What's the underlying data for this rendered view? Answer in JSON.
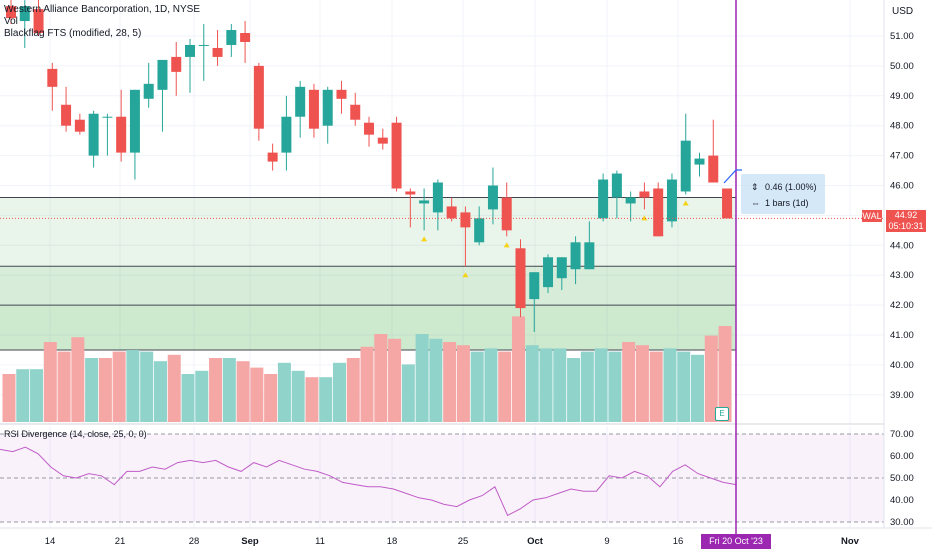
{
  "header": {
    "title": "Western Alliance Bancorporation, 1D, NYSE",
    "vol_label": "Vol",
    "indicator": "Blackflag FTS (modified, 28, 5)"
  },
  "currency": "USD",
  "measure": {
    "change": "0.46 (1.00%)",
    "bars": "1 bars (1d)"
  },
  "price_tag": {
    "ticker": "WAL",
    "price": "44.92",
    "countdown": "05:10:31"
  },
  "rsi_title": "RSI Divergence (14, close, 25, 0, 0)",
  "crosshair_date": "Fri 20 Oct '23",
  "earnings_badge": "E",
  "colors": {
    "up": "#26a69a",
    "down": "#ef5350",
    "vol_up": "#8fd3cb",
    "vol_down": "#f5a7a5",
    "zone_fill": "#4caf50",
    "rsi_line": "#c05cc8",
    "crosshair": "#9c27b0",
    "signal": "#f5d31b"
  },
  "chart_data": [
    {
      "type": "candlestick",
      "title": "Western Alliance Bancorporation, 1D, NYSE",
      "x_ticks": [
        "14",
        "21",
        "28",
        "Sep",
        "11",
        "18",
        "25",
        "Oct",
        "9",
        "16",
        "Fri 20 Oct '23",
        "Nov"
      ],
      "ylim": [
        38.3,
        51.8
      ],
      "y_ticks": [
        39.0,
        40.0,
        41.0,
        42.0,
        43.0,
        44.0,
        45.0,
        46.0,
        47.0,
        48.0,
        49.0,
        50.0,
        51.0
      ],
      "zones": [
        {
          "top": 45.6,
          "bottom": 43.3
        },
        {
          "top": 43.3,
          "bottom": 42.0
        },
        {
          "top": 42.0,
          "bottom": 40.5
        }
      ],
      "candles": [
        {
          "o": 52.0,
          "h": 52.4,
          "l": 51.4,
          "c": 51.6
        },
        {
          "o": 51.5,
          "h": 52.2,
          "l": 50.6,
          "c": 52.0
        },
        {
          "o": 51.9,
          "h": 52.4,
          "l": 51.0,
          "c": 51.1
        },
        {
          "o": 49.9,
          "h": 50.1,
          "l": 48.5,
          "c": 49.3
        },
        {
          "o": 48.7,
          "h": 49.3,
          "l": 47.8,
          "c": 48.0
        },
        {
          "o": 48.2,
          "h": 48.4,
          "l": 47.7,
          "c": 47.8
        },
        {
          "o": 47.0,
          "h": 48.5,
          "l": 46.6,
          "c": 48.4
        },
        {
          "o": 48.3,
          "h": 48.4,
          "l": 47.0,
          "c": 48.3
        },
        {
          "o": 48.3,
          "h": 49.2,
          "l": 46.8,
          "c": 47.1
        },
        {
          "o": 47.1,
          "h": 49.2,
          "l": 46.2,
          "c": 49.2
        },
        {
          "o": 48.9,
          "h": 50.1,
          "l": 48.6,
          "c": 49.4
        },
        {
          "o": 49.2,
          "h": 50.2,
          "l": 47.8,
          "c": 50.2
        },
        {
          "o": 50.3,
          "h": 50.8,
          "l": 49.0,
          "c": 49.8
        },
        {
          "o": 50.3,
          "h": 50.9,
          "l": 49.1,
          "c": 50.7
        },
        {
          "o": 50.7,
          "h": 51.4,
          "l": 49.5,
          "c": 50.7
        },
        {
          "o": 50.6,
          "h": 51.2,
          "l": 50.0,
          "c": 50.3
        },
        {
          "o": 50.7,
          "h": 51.4,
          "l": 50.3,
          "c": 51.2
        },
        {
          "o": 51.1,
          "h": 51.5,
          "l": 50.1,
          "c": 50.8
        },
        {
          "o": 50.0,
          "h": 50.1,
          "l": 47.5,
          "c": 47.9
        },
        {
          "o": 47.1,
          "h": 47.4,
          "l": 46.5,
          "c": 46.8
        },
        {
          "o": 47.1,
          "h": 49.0,
          "l": 46.5,
          "c": 48.3
        },
        {
          "o": 48.3,
          "h": 49.5,
          "l": 47.6,
          "c": 49.3
        },
        {
          "o": 49.2,
          "h": 49.4,
          "l": 47.6,
          "c": 47.9
        },
        {
          "o": 48.0,
          "h": 49.3,
          "l": 47.4,
          "c": 49.2
        },
        {
          "o": 49.2,
          "h": 49.5,
          "l": 48.4,
          "c": 48.9
        },
        {
          "o": 48.7,
          "h": 49.1,
          "l": 48.0,
          "c": 48.2
        },
        {
          "o": 48.1,
          "h": 48.3,
          "l": 47.3,
          "c": 47.7
        },
        {
          "o": 47.6,
          "h": 47.9,
          "l": 47.2,
          "c": 47.4
        },
        {
          "o": 48.1,
          "h": 48.3,
          "l": 45.8,
          "c": 45.9
        },
        {
          "o": 45.8,
          "h": 45.9,
          "l": 44.6,
          "c": 45.7
        },
        {
          "o": 45.4,
          "h": 45.9,
          "l": 44.5,
          "c": 45.5
        },
        {
          "o": 45.1,
          "h": 46.2,
          "l": 44.5,
          "c": 46.1
        },
        {
          "o": 45.3,
          "h": 45.6,
          "l": 44.8,
          "c": 44.9
        },
        {
          "o": 45.1,
          "h": 45.3,
          "l": 43.3,
          "c": 44.6
        },
        {
          "o": 44.1,
          "h": 45.3,
          "l": 44.0,
          "c": 44.9
        },
        {
          "o": 45.2,
          "h": 46.6,
          "l": 44.7,
          "c": 46.0
        },
        {
          "o": 45.6,
          "h": 46.1,
          "l": 44.3,
          "c": 44.5
        },
        {
          "o": 43.9,
          "h": 44.2,
          "l": 41.6,
          "c": 41.9
        },
        {
          "o": 42.2,
          "h": 43.1,
          "l": 41.1,
          "c": 43.1
        },
        {
          "o": 42.6,
          "h": 43.7,
          "l": 42.4,
          "c": 43.6
        },
        {
          "o": 42.9,
          "h": 43.6,
          "l": 42.5,
          "c": 43.6
        },
        {
          "o": 43.2,
          "h": 44.3,
          "l": 42.7,
          "c": 44.1
        },
        {
          "o": 43.2,
          "h": 44.8,
          "l": 43.2,
          "c": 44.1
        },
        {
          "o": 44.9,
          "h": 46.4,
          "l": 44.8,
          "c": 46.2
        },
        {
          "o": 45.6,
          "h": 46.5,
          "l": 44.9,
          "c": 46.4
        },
        {
          "o": 45.4,
          "h": 45.8,
          "l": 44.8,
          "c": 45.6
        },
        {
          "o": 45.8,
          "h": 46.1,
          "l": 45.2,
          "c": 45.6
        },
        {
          "o": 45.9,
          "h": 46.1,
          "l": 44.3,
          "c": 44.3
        },
        {
          "o": 44.8,
          "h": 46.4,
          "l": 44.6,
          "c": 46.2
        },
        {
          "o": 45.8,
          "h": 48.4,
          "l": 45.7,
          "c": 47.5
        },
        {
          "o": 46.7,
          "h": 47.1,
          "l": 46.3,
          "c": 46.9
        },
        {
          "o": 47.0,
          "h": 48.2,
          "l": 46.1,
          "c": 46.1
        },
        {
          "o": 45.9,
          "h": 45.9,
          "l": 44.9,
          "c": 44.9
        }
      ],
      "volume_direction": [
        "d",
        "u",
        "u",
        "d",
        "d",
        "d",
        "u",
        "d",
        "d",
        "u",
        "u",
        "u",
        "d",
        "u",
        "u",
        "d",
        "u",
        "d",
        "d",
        "d",
        "u",
        "u",
        "d",
        "u",
        "u",
        "d",
        "d",
        "d",
        "d",
        "u",
        "u",
        "u",
        "d",
        "d",
        "u",
        "u",
        "d",
        "d",
        "u",
        "u",
        "u",
        "u",
        "u",
        "u",
        "u",
        "d",
        "d",
        "d",
        "u",
        "u",
        "u",
        "d",
        "d"
      ],
      "volume_relative": [
        0.3,
        0.33,
        0.33,
        0.5,
        0.44,
        0.53,
        0.4,
        0.4,
        0.44,
        0.45,
        0.44,
        0.38,
        0.42,
        0.3,
        0.32,
        0.4,
        0.4,
        0.38,
        0.34,
        0.3,
        0.37,
        0.32,
        0.28,
        0.28,
        0.37,
        0.4,
        0.47,
        0.55,
        0.52,
        0.36,
        0.55,
        0.52,
        0.5,
        0.48,
        0.44,
        0.46,
        0.44,
        0.66,
        0.48,
        0.46,
        0.46,
        0.4,
        0.44,
        0.46,
        0.44,
        0.5,
        0.48,
        0.44,
        0.46,
        0.44,
        0.42,
        0.54,
        0.6
      ],
      "signals_below_bar_index": [
        30,
        33,
        36,
        46,
        49
      ]
    },
    {
      "type": "line",
      "title": "RSI Divergence (14, close, 25, 0, 0)",
      "ylim": [
        28,
        72
      ],
      "y_ticks": [
        30.0,
        40.0,
        50.0,
        60.0,
        70.0
      ],
      "bands": [
        70,
        50,
        30
      ],
      "values": [
        63,
        62,
        64,
        61,
        55,
        51,
        50,
        52,
        51,
        47,
        53,
        53,
        55,
        54,
        57,
        58,
        57,
        58,
        55,
        53,
        57,
        55,
        58,
        56,
        54,
        53,
        51,
        48,
        47,
        46,
        46,
        45,
        43,
        41,
        40,
        38,
        37,
        40,
        42,
        46,
        33,
        36,
        40,
        41,
        43,
        45,
        44,
        44,
        51,
        50,
        53,
        51,
        46,
        53,
        56,
        52,
        50,
        48,
        47
      ]
    }
  ]
}
